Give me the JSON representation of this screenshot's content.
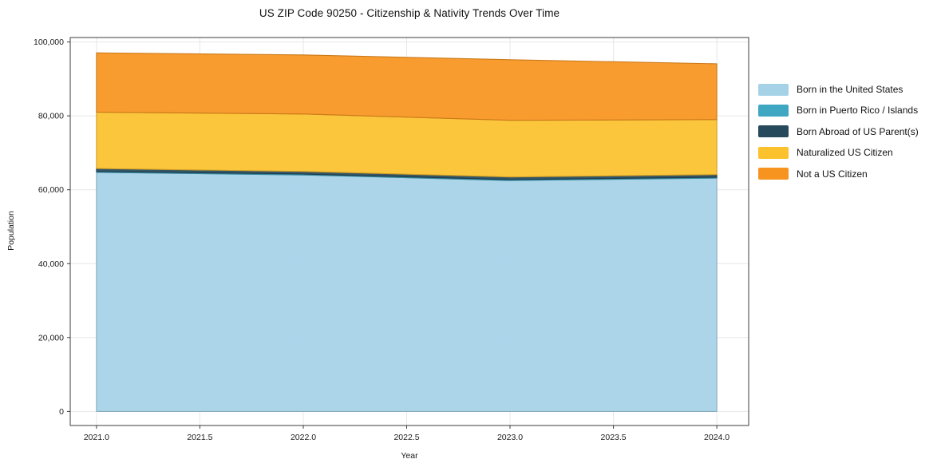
{
  "title": "US ZIP Code 90250 - Citizenship & Nativity Trends Over Time",
  "chart_data": {
    "type": "area",
    "stacked": true,
    "title": "US ZIP Code 90250 - Citizenship & Nativity Trends Over Time",
    "xlabel": "Year",
    "ylabel": "Population",
    "x": [
      2021,
      2022,
      2023,
      2024
    ],
    "series": [
      {
        "name": "Born in the United States",
        "color": "#a6d2e8",
        "values": [
          64700,
          64000,
          62500,
          63150
        ]
      },
      {
        "name": "Born in Puerto Rico / Islands",
        "color": "#3fa7c1",
        "values": [
          250,
          250,
          250,
          250
        ]
      },
      {
        "name": "Born Abroad of US Parent(s)",
        "color": "#26495c",
        "values": [
          800,
          700,
          700,
          700
        ]
      },
      {
        "name": "Naturalized US Citizen",
        "color": "#fcc22d",
        "values": [
          15250,
          15550,
          15350,
          14900
        ]
      },
      {
        "name": "Not a US Citizen",
        "color": "#f7941f",
        "values": [
          16050,
          16000,
          16400,
          15100
        ]
      }
    ],
    "totals": [
      97050,
      96500,
      95200,
      94100
    ],
    "xlim": [
      2020.873,
      2024.154
    ],
    "ylim": [
      -3800,
      101200
    ],
    "xticks": {
      "values": [
        2021.0,
        2021.5,
        2022.0,
        2022.5,
        2023.0,
        2023.5,
        2024.0
      ],
      "labels": [
        "2021.0",
        "2021.5",
        "2022.0",
        "2022.5",
        "2023.0",
        "2023.5",
        "2024.0"
      ]
    },
    "yticks": {
      "values": [
        0,
        20000,
        40000,
        60000,
        80000,
        100000
      ],
      "labels": [
        "0",
        "20,000",
        "40,000",
        "60,000",
        "80,000",
        "100,000"
      ]
    },
    "grid": true,
    "legend_position": "right-outside"
  }
}
